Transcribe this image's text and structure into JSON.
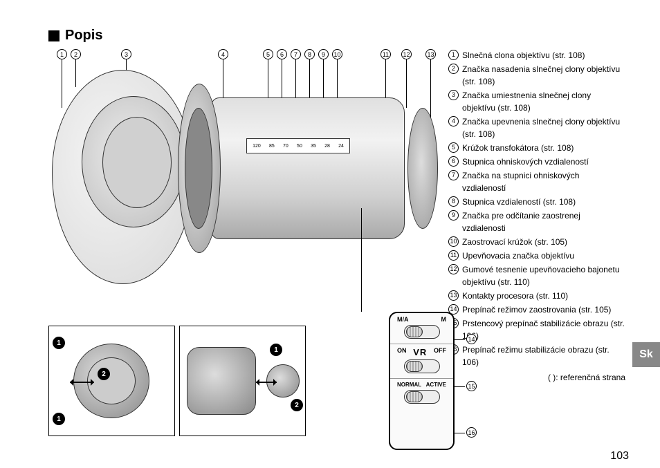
{
  "heading": "Popis",
  "callouts_top": [
    "1",
    "2",
    "3",
    "4",
    "5",
    "6",
    "7",
    "8",
    "9",
    "10",
    "11",
    "12",
    "13"
  ],
  "callouts_side": [
    "14",
    "15",
    "16"
  ],
  "scale_numbers": [
    "120",
    "85",
    "70",
    "50",
    "35",
    "28",
    "24"
  ],
  "switch": {
    "row1_left": "M/A",
    "row1_right": "M",
    "row2_left": "ON",
    "row2_center": "VR",
    "row2_right": "OFF",
    "row3_left": "NORMAL",
    "row3_right": "ACTIVE"
  },
  "thumbs": {
    "b1": "1",
    "b2": "2"
  },
  "legend": [
    {
      "n": "1",
      "t": "Slnečná clona objektívu (str. 108)"
    },
    {
      "n": "2",
      "t": "Značka nasadenia slnečnej clony objektívu (str. 108)"
    },
    {
      "n": "3",
      "t": "Značka umiestnenia slnečnej clony objektívu (str. 108)"
    },
    {
      "n": "4",
      "t": "Značka upevnenia slnečnej clony objektívu (str. 108)"
    },
    {
      "n": "5",
      "t": "Krúžok transfokátora (str. 108)"
    },
    {
      "n": "6",
      "t": "Stupnica ohniskových vzdialeností"
    },
    {
      "n": "7",
      "t": "Značka na stupnici ohniskových vzdialeností"
    },
    {
      "n": "8",
      "t": "Stupnica vzdialeností (str. 108)"
    },
    {
      "n": "9",
      "t": "Značka pre odčítanie zaostrenej vzdialenosti"
    },
    {
      "n": "10",
      "t": "Zaostrovací krúžok (str. 105)"
    },
    {
      "n": "11",
      "t": "Upevňovacia značka objektívu"
    },
    {
      "n": "12",
      "t": "Gumové tesnenie upevňovacieho bajonetu objektívu (str. 110)"
    },
    {
      "n": "13",
      "t": "Kontakty procesora (str. 110)"
    },
    {
      "n": "14",
      "t": "Prepínač režimov zaostrovania (str. 105)"
    },
    {
      "n": "15",
      "t": "Prstencový prepínač stabilizácie obrazu (str. 106)"
    },
    {
      "n": "16",
      "t": "Prepínač režimu stabilizácie obrazu (str. 106)"
    }
  ],
  "refnote": "(  ): referenčná strana",
  "tab": "Sk",
  "pagenum": "103"
}
